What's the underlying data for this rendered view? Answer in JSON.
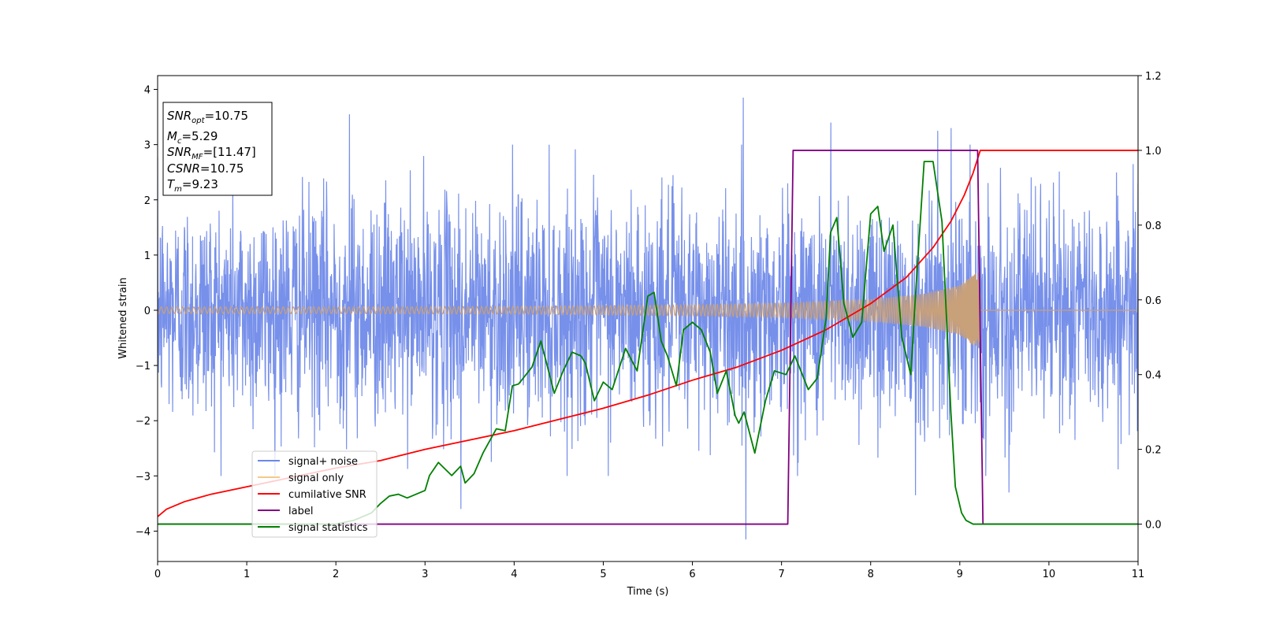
{
  "chart_data": {
    "type": "line",
    "xlabel": "Time (s)",
    "ylabel": "Whitened strain",
    "xlim": [
      0,
      11
    ],
    "ylim": [
      -4.55,
      4.25
    ],
    "y2lim": [
      -0.1,
      1.2
    ],
    "x_ticks": [
      "0",
      "1",
      "2",
      "3",
      "4",
      "5",
      "6",
      "7",
      "8",
      "9",
      "10",
      "11"
    ],
    "y_ticks": [
      "−4",
      "−3",
      "−2",
      "−1",
      "0",
      "1",
      "2",
      "3",
      "4"
    ],
    "y2_ticks": [
      "0.0",
      "0.2",
      "0.4",
      "0.6",
      "0.8",
      "1.0",
      "1.2"
    ],
    "annotation": {
      "lines": [
        {
          "var": "SNR",
          "sub": "opt",
          "value": "=10.75"
        },
        {
          "var": "M",
          "sub": "c",
          "value": "=5.29"
        },
        {
          "var": "SNR",
          "sub": "MF",
          "value": "=[11.47]"
        },
        {
          "var": "CSNR",
          "sub": "",
          "value": "=10.75"
        },
        {
          "var": "T",
          "sub": "m",
          "value": "=9.23"
        }
      ]
    },
    "legend": {
      "placement": "lower-left",
      "entries": [
        {
          "label": "signal+ noise",
          "color": "#6b87e8"
        },
        {
          "label": "signal only",
          "color": "#f5c98a"
        },
        {
          "label": "cumilative SNR",
          "color": "#ff0000"
        },
        {
          "label": "label",
          "color": "#800080"
        },
        {
          "label": "signal statistics",
          "color": "#008000"
        }
      ]
    },
    "series": [
      {
        "name": "signal+ noise",
        "axis": "left",
        "color": "#6b87e8",
        "kind": "noise",
        "t_range": [
          0,
          11
        ],
        "amplitude_std": 1.0,
        "extremes": [
          [
            2.15,
            3.55
          ],
          [
            6.57,
            3.85
          ],
          [
            6.6,
            -4.15
          ],
          [
            7.55,
            3.4
          ],
          [
            8.75,
            3.25
          ],
          [
            8.9,
            3.3
          ],
          [
            3.4,
            -3.6
          ],
          [
            8.5,
            -3.35
          ],
          [
            9.55,
            -3.3
          ]
        ]
      },
      {
        "name": "signal only",
        "axis": "left",
        "color": "#c8a07a",
        "kind": "chirp",
        "t_range": [
          0,
          9.23
        ],
        "envelope": [
          [
            0,
            0.06
          ],
          [
            2,
            0.06
          ],
          [
            4,
            0.07
          ],
          [
            6,
            0.1
          ],
          [
            7,
            0.13
          ],
          [
            8,
            0.2
          ],
          [
            8.6,
            0.3
          ],
          [
            9.0,
            0.45
          ],
          [
            9.2,
            0.7
          ]
        ]
      },
      {
        "name": "cumilative SNR",
        "axis": "right",
        "color": "#ff0000",
        "x": [
          0,
          0.1,
          0.3,
          0.6,
          1.0,
          1.5,
          2.0,
          2.5,
          3.0,
          3.5,
          4.0,
          4.5,
          5.0,
          5.5,
          6.0,
          6.5,
          7.0,
          7.5,
          8.0,
          8.4,
          8.7,
          8.9,
          9.05,
          9.15,
          9.23,
          11
        ],
        "y": [
          0.02,
          0.04,
          0.06,
          0.08,
          0.1,
          0.125,
          0.15,
          0.17,
          0.2,
          0.225,
          0.25,
          0.28,
          0.31,
          0.345,
          0.385,
          0.42,
          0.465,
          0.52,
          0.59,
          0.66,
          0.74,
          0.81,
          0.88,
          0.94,
          1.0,
          1.0
        ]
      },
      {
        "name": "label",
        "axis": "right",
        "color": "#800080",
        "x": [
          0,
          7.07,
          7.13,
          9.2,
          9.26,
          11
        ],
        "y": [
          0,
          0,
          1,
          1,
          0,
          0
        ]
      },
      {
        "name": "signal statistics",
        "axis": "right",
        "color": "#008000",
        "x": [
          0,
          0.5,
          1.0,
          1.5,
          2.0,
          2.2,
          2.4,
          2.5,
          2.6,
          2.7,
          2.8,
          2.9,
          3.0,
          3.05,
          3.15,
          3.3,
          3.4,
          3.45,
          3.55,
          3.65,
          3.8,
          3.9,
          3.98,
          4.05,
          4.2,
          4.3,
          4.45,
          4.55,
          4.65,
          4.75,
          4.8,
          4.9,
          5.0,
          5.1,
          5.25,
          5.38,
          5.5,
          5.57,
          5.65,
          5.72,
          5.82,
          5.9,
          6.0,
          6.1,
          6.2,
          6.28,
          6.38,
          6.48,
          6.52,
          6.58,
          6.7,
          6.82,
          6.92,
          7.05,
          7.15,
          7.3,
          7.4,
          7.5,
          7.55,
          7.62,
          7.7,
          7.8,
          7.9,
          8.0,
          8.08,
          8.15,
          8.25,
          8.35,
          8.45,
          8.5,
          8.6,
          8.7,
          8.8,
          8.9,
          8.95,
          9.02,
          9.07,
          9.15,
          9.25,
          11
        ],
        "y": [
          0.0,
          0.0,
          0.0,
          0.0,
          0.0,
          0.01,
          0.03,
          0.055,
          0.075,
          0.08,
          0.07,
          0.08,
          0.09,
          0.13,
          0.165,
          0.13,
          0.155,
          0.11,
          0.135,
          0.19,
          0.255,
          0.25,
          0.37,
          0.375,
          0.42,
          0.49,
          0.35,
          0.41,
          0.46,
          0.45,
          0.43,
          0.33,
          0.38,
          0.36,
          0.47,
          0.41,
          0.61,
          0.62,
          0.49,
          0.45,
          0.37,
          0.52,
          0.54,
          0.52,
          0.46,
          0.35,
          0.41,
          0.29,
          0.27,
          0.3,
          0.19,
          0.33,
          0.41,
          0.4,
          0.45,
          0.36,
          0.39,
          0.55,
          0.78,
          0.82,
          0.59,
          0.5,
          0.54,
          0.83,
          0.85,
          0.73,
          0.8,
          0.5,
          0.4,
          0.6,
          0.97,
          0.97,
          0.81,
          0.3,
          0.1,
          0.03,
          0.01,
          0.0,
          0.0,
          0.0
        ]
      }
    ]
  }
}
